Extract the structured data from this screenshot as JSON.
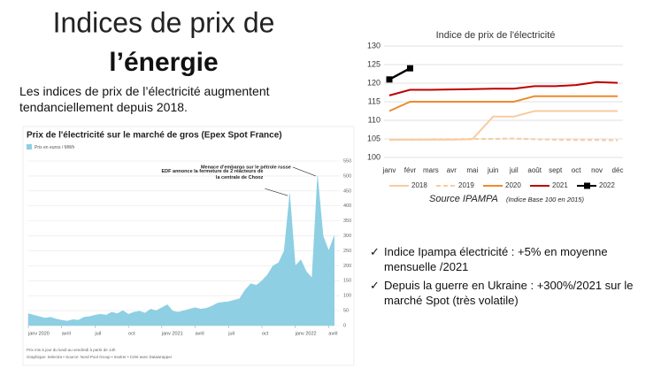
{
  "slide": {
    "title_line1": "Indices de prix de",
    "title_line2": "l’énergie",
    "subtitle": "Les indices de prix de l’électricité augmentent tendanciellement depuis 2018.",
    "bullets": [
      "Indice Ipampa électricité :  +5% en moyenne mensuelle /2021",
      "Depuis la guerre en Ukraine : +300%/2021 sur le marché Spot (très volatile)"
    ]
  },
  "chart_data": [
    {
      "type": "area",
      "title": "Prix de l'électricité sur le marché de gros (Epex Spot France)",
      "legend": "Prix en euros / MWh",
      "color": "#8ecfe3",
      "x": [
        0,
        0.5,
        1,
        1.5,
        2,
        2.5,
        3,
        3.5,
        4,
        4.5,
        5,
        5.5,
        6,
        6.5,
        7,
        7.5,
        8,
        8.5,
        9,
        9.5,
        10,
        10.5,
        11,
        11.5,
        12,
        12.5,
        13,
        13.5,
        14,
        14.5,
        15,
        15.5,
        16,
        16.5,
        17,
        17.5,
        18,
        18.5,
        19,
        19.5,
        20,
        20.5,
        21,
        21.5,
        22,
        22.5,
        23,
        23.5,
        24,
        24.5,
        25,
        25.5,
        26,
        26.5,
        27,
        27.5
      ],
      "values": [
        40,
        35,
        30,
        25,
        28,
        22,
        18,
        15,
        20,
        18,
        28,
        30,
        35,
        38,
        35,
        45,
        40,
        50,
        38,
        45,
        48,
        42,
        55,
        50,
        60,
        70,
        48,
        45,
        50,
        55,
        60,
        55,
        58,
        65,
        75,
        78,
        80,
        85,
        90,
        120,
        140,
        135,
        150,
        170,
        200,
        210,
        250,
        440,
        200,
        220,
        180,
        160,
        500,
        300,
        250,
        300
      ],
      "xlim": [
        0,
        28
      ],
      "xticks": [
        {
          "value": 0,
          "label": "janv 2020"
        },
        {
          "value": 3,
          "label": "avril"
        },
        {
          "value": 6,
          "label": "juil"
        },
        {
          "value": 9,
          "label": "oct"
        },
        {
          "value": 12,
          "label": "janv 2021"
        },
        {
          "value": 15,
          "label": "avril"
        },
        {
          "value": 18,
          "label": "juil"
        },
        {
          "value": 21,
          "label": "oct"
        },
        {
          "value": 24,
          "label": "janv 2022"
        },
        {
          "value": 27,
          "label": "avril"
        }
      ],
      "ylim": [
        0,
        550
      ],
      "yticks": [
        0,
        50,
        100,
        150,
        200,
        250,
        300,
        350,
        400,
        450,
        500,
        550
      ],
      "annotations": [
        {
          "text": "Menace d'embargo sur le pétrole russe",
          "x": 26,
          "y": 500
        },
        {
          "text": "EDF annonce la fermeture de 2 réacteurs de la centrale de Chooz",
          "x": 23.5,
          "y": 440
        }
      ],
      "notes": [
        "Prix mis à jour du lundi au vendredi à partir de 14h",
        "Graphique: Selectra • Source: Nord Pool Group • Insérer • Créé avec Datawrapper"
      ]
    },
    {
      "type": "line",
      "title": "Indice de prix de l'électricité",
      "categories": [
        "janv",
        "févr",
        "mars",
        "avr",
        "mai",
        "juin",
        "juil",
        "août",
        "sept",
        "oct",
        "nov",
        "déc"
      ],
      "ylim": [
        100,
        130
      ],
      "yticks": [
        100,
        105,
        110,
        115,
        120,
        125,
        130
      ],
      "series": [
        {
          "name": "2018",
          "color": "#f8cba0",
          "values": [
            104.8,
            104.8,
            104.8,
            104.8,
            104.9,
            111,
            111,
            112.5,
            112.5,
            112.5,
            112.5,
            112.5
          ]
        },
        {
          "name": "2019",
          "color": "#f8cba0",
          "dashed": true,
          "values": [
            104.7,
            104.8,
            104.9,
            104.9,
            105,
            105,
            105.1,
            104.9,
            104.8,
            104.7,
            104.7,
            104.6
          ]
        },
        {
          "name": "2020",
          "color": "#ed8b2b",
          "values": [
            112.5,
            115,
            115,
            115,
            115,
            115,
            115,
            116.5,
            116.5,
            116.5,
            116.5,
            116.5
          ]
        },
        {
          "name": "2021",
          "color": "#c00000",
          "values": [
            116.7,
            118.2,
            118.2,
            118.3,
            118.4,
            118.5,
            118.5,
            119.2,
            119.2,
            119.5,
            120.3,
            120.1
          ]
        },
        {
          "name": "2022",
          "color": "#000000",
          "markers": true,
          "values": [
            121,
            124,
            null,
            null,
            null,
            null,
            null,
            null,
            null,
            null,
            null,
            null
          ]
        }
      ],
      "source": "Source IPAMPA",
      "source_note": "(Indice Base 100 en 2015)"
    }
  ]
}
